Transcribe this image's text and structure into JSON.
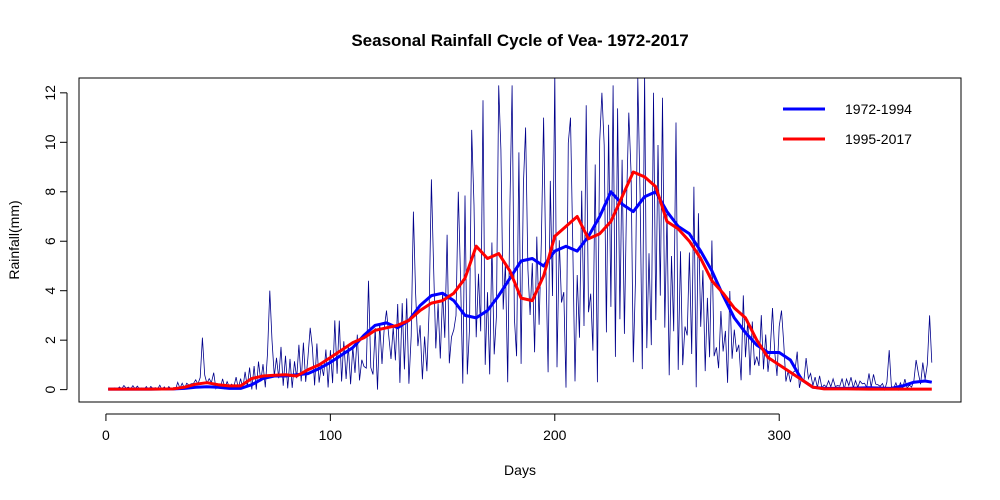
{
  "chart_data": {
    "type": "line",
    "title": "Seasonal Rainfall Cycle of Vea- 1972-2017",
    "xlabel": "Days",
    "ylabel": "Rainfall(mm)",
    "xlim": [
      -12,
      381
    ],
    "ylim": [
      -0.5,
      12.6
    ],
    "x_ticks": [
      0,
      100,
      200,
      300
    ],
    "y_ticks": [
      0,
      2,
      4,
      6,
      8,
      10,
      12
    ],
    "legend_position": "top-right",
    "grid": false,
    "daily_series": {
      "color": "#00008B",
      "envelope": [
        [
          1,
          0.1
        ],
        [
          10,
          0.2
        ],
        [
          20,
          0.15
        ],
        [
          30,
          0.25
        ],
        [
          40,
          0.8
        ],
        [
          45,
          1.2
        ],
        [
          50,
          0.6
        ],
        [
          60,
          0.5
        ],
        [
          70,
          1.6
        ],
        [
          75,
          2.8
        ],
        [
          80,
          1.8
        ],
        [
          85,
          1.8
        ],
        [
          90,
          2.2
        ],
        [
          100,
          3.0
        ],
        [
          110,
          2.8
        ],
        [
          120,
          3.5
        ],
        [
          130,
          4.5
        ],
        [
          140,
          5.8
        ],
        [
          150,
          7.0
        ],
        [
          160,
          9.0
        ],
        [
          170,
          10.5
        ],
        [
          180,
          10.8
        ],
        [
          190,
          11.2
        ],
        [
          200,
          11.5
        ],
        [
          210,
          10.8
        ],
        [
          220,
          11.0
        ],
        [
          230,
          11.8
        ],
        [
          240,
          12.4
        ],
        [
          250,
          10.5
        ],
        [
          260,
          8.5
        ],
        [
          270,
          6.5
        ],
        [
          280,
          4.5
        ],
        [
          290,
          3.2
        ],
        [
          300,
          3.0
        ],
        [
          310,
          1.8
        ],
        [
          320,
          0.4
        ],
        [
          330,
          0.5
        ],
        [
          340,
          0.8
        ],
        [
          350,
          0.3
        ],
        [
          360,
          0.8
        ],
        [
          366,
          1.5
        ]
      ],
      "spikes": [
        [
          43,
          2.1
        ],
        [
          73,
          4.0
        ],
        [
          91,
          2.5
        ],
        [
          117,
          4.4
        ],
        [
          125,
          3.2
        ],
        [
          137,
          7.2
        ],
        [
          145,
          8.5
        ],
        [
          157,
          8.0
        ],
        [
          163,
          10.5
        ],
        [
          168,
          11.7
        ],
        [
          175,
          12.3
        ],
        [
          181,
          12.3
        ],
        [
          187,
          10.6
        ],
        [
          195,
          11.0
        ],
        [
          200,
          12.8
        ],
        [
          207,
          11.0
        ],
        [
          214,
          11.5
        ],
        [
          221,
          12.0
        ],
        [
          226,
          12.3
        ],
        [
          233,
          11.2
        ],
        [
          237,
          12.6
        ],
        [
          240,
          12.8
        ],
        [
          244,
          12.0
        ],
        [
          248,
          11.8
        ],
        [
          254,
          10.8
        ],
        [
          262,
          8.2
        ],
        [
          297,
          3.3
        ],
        [
          301,
          3.2
        ],
        [
          349,
          1.6
        ],
        [
          361,
          1.2
        ],
        [
          367,
          3.0
        ]
      ]
    },
    "series": [
      {
        "name": "1972-1994",
        "color": "#0000FF",
        "points": [
          [
            1,
            0.02
          ],
          [
            10,
            0.02
          ],
          [
            20,
            0.02
          ],
          [
            30,
            0.03
          ],
          [
            35,
            0.05
          ],
          [
            40,
            0.1
          ],
          [
            45,
            0.12
          ],
          [
            50,
            0.1
          ],
          [
            55,
            0.05
          ],
          [
            60,
            0.05
          ],
          [
            65,
            0.2
          ],
          [
            70,
            0.45
          ],
          [
            75,
            0.55
          ],
          [
            80,
            0.55
          ],
          [
            85,
            0.6
          ],
          [
            90,
            0.65
          ],
          [
            95,
            0.85
          ],
          [
            100,
            1.1
          ],
          [
            105,
            1.4
          ],
          [
            110,
            1.7
          ],
          [
            115,
            2.2
          ],
          [
            120,
            2.6
          ],
          [
            125,
            2.7
          ],
          [
            130,
            2.5
          ],
          [
            135,
            2.8
          ],
          [
            140,
            3.4
          ],
          [
            145,
            3.8
          ],
          [
            150,
            3.9
          ],
          [
            155,
            3.6
          ],
          [
            160,
            3.0
          ],
          [
            165,
            2.9
          ],
          [
            170,
            3.2
          ],
          [
            175,
            3.8
          ],
          [
            180,
            4.5
          ],
          [
            185,
            5.2
          ],
          [
            190,
            5.3
          ],
          [
            195,
            5.0
          ],
          [
            200,
            5.6
          ],
          [
            205,
            5.8
          ],
          [
            210,
            5.6
          ],
          [
            215,
            6.2
          ],
          [
            220,
            7.0
          ],
          [
            225,
            8.0
          ],
          [
            230,
            7.5
          ],
          [
            235,
            7.2
          ],
          [
            240,
            7.8
          ],
          [
            245,
            8.0
          ],
          [
            250,
            7.2
          ],
          [
            255,
            6.6
          ],
          [
            260,
            6.3
          ],
          [
            265,
            5.6
          ],
          [
            270,
            4.8
          ],
          [
            275,
            3.8
          ],
          [
            280,
            2.9
          ],
          [
            285,
            2.3
          ],
          [
            290,
            1.8
          ],
          [
            295,
            1.5
          ],
          [
            300,
            1.5
          ],
          [
            305,
            1.2
          ],
          [
            310,
            0.4
          ],
          [
            315,
            0.1
          ],
          [
            320,
            0.05
          ],
          [
            330,
            0.05
          ],
          [
            340,
            0.08
          ],
          [
            350,
            0.05
          ],
          [
            355,
            0.15
          ],
          [
            360,
            0.3
          ],
          [
            365,
            0.35
          ],
          [
            368,
            0.3
          ]
        ]
      },
      {
        "name": "1995-2017",
        "color": "#FF0000",
        "points": [
          [
            1,
            0.02
          ],
          [
            10,
            0.02
          ],
          [
            20,
            0.02
          ],
          [
            30,
            0.03
          ],
          [
            35,
            0.1
          ],
          [
            40,
            0.22
          ],
          [
            45,
            0.28
          ],
          [
            50,
            0.2
          ],
          [
            55,
            0.15
          ],
          [
            60,
            0.15
          ],
          [
            65,
            0.45
          ],
          [
            70,
            0.55
          ],
          [
            75,
            0.58
          ],
          [
            80,
            0.6
          ],
          [
            85,
            0.55
          ],
          [
            90,
            0.8
          ],
          [
            95,
            1.0
          ],
          [
            100,
            1.3
          ],
          [
            105,
            1.6
          ],
          [
            110,
            1.9
          ],
          [
            115,
            2.1
          ],
          [
            120,
            2.4
          ],
          [
            125,
            2.5
          ],
          [
            130,
            2.6
          ],
          [
            135,
            2.8
          ],
          [
            140,
            3.2
          ],
          [
            145,
            3.5
          ],
          [
            150,
            3.6
          ],
          [
            155,
            3.9
          ],
          [
            160,
            4.5
          ],
          [
            165,
            5.8
          ],
          [
            170,
            5.3
          ],
          [
            175,
            5.5
          ],
          [
            180,
            4.8
          ],
          [
            185,
            3.7
          ],
          [
            190,
            3.6
          ],
          [
            195,
            4.6
          ],
          [
            200,
            6.2
          ],
          [
            205,
            6.6
          ],
          [
            210,
            7.0
          ],
          [
            215,
            6.1
          ],
          [
            220,
            6.3
          ],
          [
            225,
            6.8
          ],
          [
            230,
            7.8
          ],
          [
            235,
            8.8
          ],
          [
            240,
            8.6
          ],
          [
            245,
            8.2
          ],
          [
            250,
            6.8
          ],
          [
            255,
            6.5
          ],
          [
            260,
            6.0
          ],
          [
            265,
            5.3
          ],
          [
            270,
            4.4
          ],
          [
            275,
            3.9
          ],
          [
            280,
            3.3
          ],
          [
            285,
            2.9
          ],
          [
            290,
            2.0
          ],
          [
            295,
            1.3
          ],
          [
            300,
            1.0
          ],
          [
            305,
            0.7
          ],
          [
            310,
            0.4
          ],
          [
            315,
            0.1
          ],
          [
            320,
            0.03
          ],
          [
            330,
            0.03
          ],
          [
            340,
            0.02
          ],
          [
            350,
            0.02
          ],
          [
            360,
            0.02
          ],
          [
            368,
            0.02
          ]
        ]
      }
    ]
  }
}
